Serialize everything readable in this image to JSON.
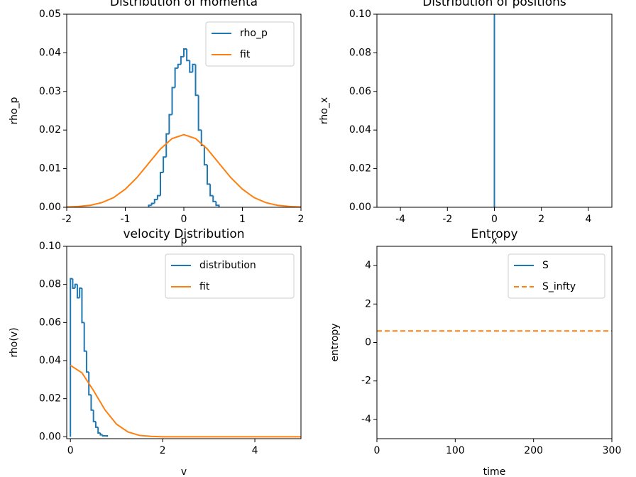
{
  "chart_data": [
    {
      "type": "histogram",
      "title": "Distribution of momenta",
      "xlabel": "p",
      "ylabel": "rho_p",
      "xlim": [
        -2,
        2
      ],
      "ylim": [
        0,
        0.05
      ],
      "xticks": [
        -2,
        -1,
        0,
        1,
        2
      ],
      "yticks": [
        {
          "value": 0,
          "label": "0.00"
        },
        {
          "value": 0.01,
          "label": "0.01"
        },
        {
          "value": 0.02,
          "label": "0.02"
        },
        {
          "value": 0.03,
          "label": "0.03"
        },
        {
          "value": 0.04,
          "label": "0.04"
        },
        {
          "value": 0.05,
          "label": "0.05"
        }
      ],
      "legend": "upper right",
      "series": [
        {
          "name": "rho_p",
          "color": "#1f77b4",
          "bins": [
            -0.6,
            -0.55,
            -0.5,
            -0.45,
            -0.4,
            -0.35,
            -0.3,
            -0.25,
            -0.2,
            -0.15,
            -0.1,
            -0.05,
            0,
            0.05,
            0.1,
            0.15,
            0.2,
            0.25,
            0.3,
            0.35,
            0.4,
            0.45,
            0.5,
            0.55,
            0.6
          ],
          "values": [
            0.0005,
            0.001,
            0.002,
            0.003,
            0.009,
            0.013,
            0.019,
            0.024,
            0.031,
            0.036,
            0.037,
            0.039,
            0.041,
            0.038,
            0.035,
            0.037,
            0.029,
            0.02,
            0.016,
            0.011,
            0.006,
            0.003,
            0.0015,
            0.0005
          ]
        },
        {
          "name": "fit",
          "color": "#ff7f0e",
          "x": [
            -2,
            -1.8,
            -1.6,
            -1.4,
            -1.2,
            -1,
            -0.8,
            -0.6,
            -0.4,
            -0.2,
            0,
            0.2,
            0.4,
            0.6,
            0.8,
            1,
            1.2,
            1.4,
            1.6,
            1.8,
            2
          ],
          "values": [
            7e-05,
            0.0002,
            0.0005,
            0.0012,
            0.0025,
            0.0047,
            0.0077,
            0.0114,
            0.0151,
            0.0178,
            0.0188,
            0.0178,
            0.0151,
            0.0114,
            0.0077,
            0.0047,
            0.0025,
            0.0012,
            0.0005,
            0.0002,
            7e-05
          ]
        }
      ]
    },
    {
      "type": "line",
      "title": "Distribution of positions",
      "xlabel": "x",
      "ylabel": "rho_x",
      "xlim": [
        -5,
        5
      ],
      "ylim": [
        0,
        0.1
      ],
      "xticks": [
        -4,
        -2,
        0,
        2,
        4
      ],
      "yticks": [
        {
          "value": 0,
          "label": "0.00"
        },
        {
          "value": 0.02,
          "label": "0.02"
        },
        {
          "value": 0.04,
          "label": "0.04"
        },
        {
          "value": 0.06,
          "label": "0.06"
        },
        {
          "value": 0.08,
          "label": "0.08"
        },
        {
          "value": 0.1,
          "label": "0.10"
        }
      ],
      "series": [
        {
          "color": "#1f77b4",
          "x": [
            0,
            0
          ],
          "values": [
            0,
            0.1
          ]
        }
      ]
    },
    {
      "type": "histogram",
      "title": "velocity Distribution",
      "xlabel": "v",
      "ylabel": "rho(v)",
      "xlim": [
        -0.08,
        5
      ],
      "ylim": [
        -0.001,
        0.1
      ],
      "xticks": [
        0,
        2,
        4
      ],
      "yticks": [
        {
          "value": 0,
          "label": "0.00"
        },
        {
          "value": 0.02,
          "label": "0.02"
        },
        {
          "value": 0.04,
          "label": "0.04"
        },
        {
          "value": 0.06,
          "label": "0.06"
        },
        {
          "value": 0.08,
          "label": "0.08"
        },
        {
          "value": 0.1,
          "label": "0.10"
        }
      ],
      "legend": "upper right",
      "series": [
        {
          "name": "distribution",
          "color": "#1f77b4",
          "bins": [
            0,
            0.05,
            0.1,
            0.15,
            0.2,
            0.25,
            0.3,
            0.35,
            0.4,
            0.45,
            0.5,
            0.55,
            0.6,
            0.65,
            0.7,
            0.75,
            0.8
          ],
          "values": [
            0.083,
            0.078,
            0.08,
            0.073,
            0.078,
            0.06,
            0.045,
            0.034,
            0.022,
            0.014,
            0.008,
            0.005,
            0.002,
            0.001,
            0.0005,
            0.0005
          ]
        },
        {
          "name": "fit",
          "color": "#ff7f0e",
          "x": [
            0,
            0.25,
            0.5,
            0.75,
            1,
            1.25,
            1.5,
            1.75,
            2,
            3,
            4,
            5
          ],
          "values": [
            0.0375,
            0.0336,
            0.0243,
            0.0141,
            0.0066,
            0.0025,
            0.0007,
            0.0002,
            0,
            0,
            0,
            0
          ]
        }
      ]
    },
    {
      "type": "line",
      "title": "Entropy",
      "xlabel": "time",
      "ylabel": "entropy",
      "xlim": [
        0,
        300
      ],
      "ylim": [
        -5,
        5
      ],
      "xticks": [
        0,
        100,
        200,
        300
      ],
      "yticks": [
        -4,
        -2,
        0,
        2,
        4
      ],
      "legend": "upper right",
      "series": [
        {
          "name": "S",
          "color": "#1f77b4",
          "x": [],
          "values": []
        },
        {
          "name": "S_infty",
          "color": "#ff7f0e",
          "linestyle": "dashed",
          "x": [
            0,
            300
          ],
          "values": [
            0.6,
            0.6
          ]
        }
      ]
    }
  ]
}
